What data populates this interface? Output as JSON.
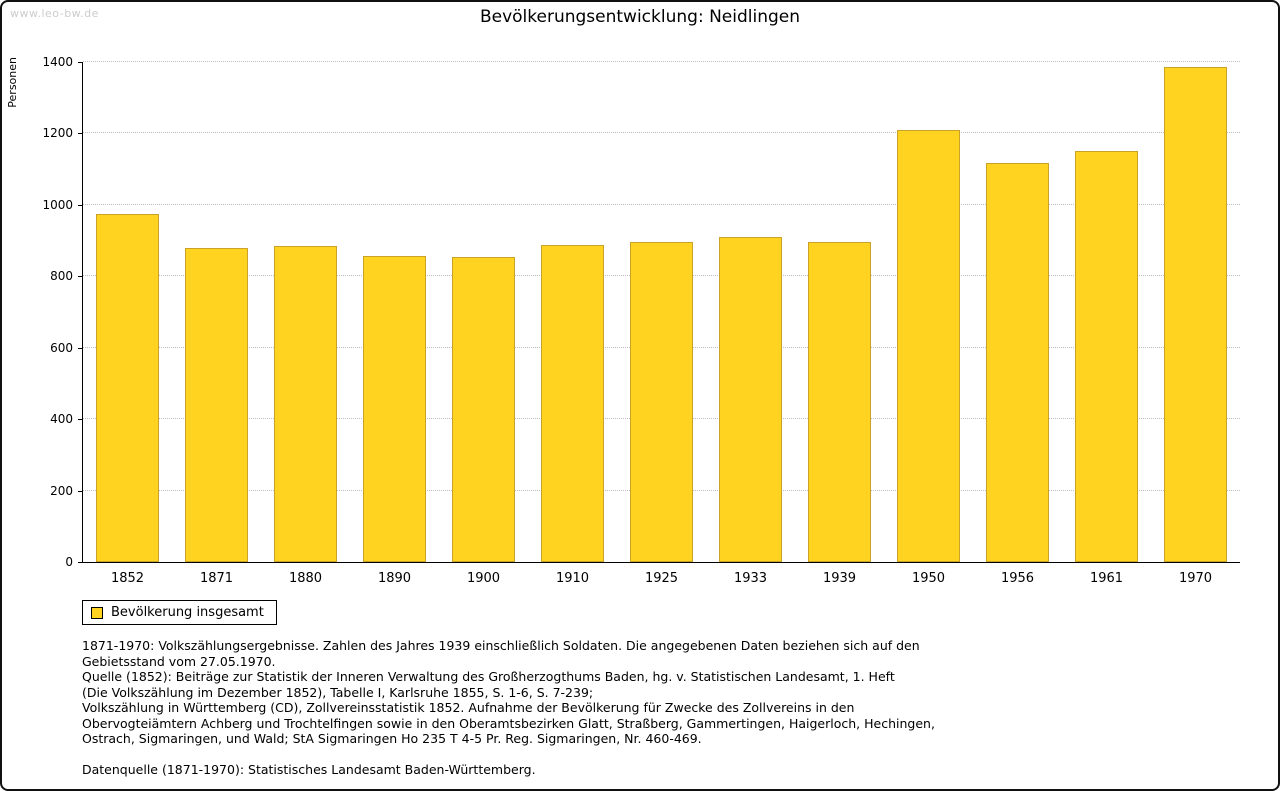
{
  "page": {
    "watermark": "www.leo-bw.de",
    "title": "Bevölkerungsentwicklung: Neidlingen"
  },
  "chart_data": {
    "type": "bar",
    "title": "Bevölkerungsentwicklung: Neidlingen",
    "xlabel": "",
    "ylabel": "Personen",
    "categories": [
      "1852",
      "1871",
      "1880",
      "1890",
      "1900",
      "1910",
      "1925",
      "1933",
      "1939",
      "1950",
      "1956",
      "1961",
      "1970"
    ],
    "series": [
      {
        "name": "Bevölkerung insgesamt",
        "values": [
          974,
          880,
          884,
          858,
          854,
          887,
          897,
          911,
          895,
          1211,
          1117,
          1152,
          1387
        ]
      }
    ],
    "ylim": [
      0,
      1400
    ],
    "yticks": [
      0,
      200,
      400,
      600,
      800,
      1000,
      1200,
      1400
    ],
    "grid": "horizontal-dotted",
    "legend_position": "bottom-left",
    "bar_color": "#FFD320",
    "bar_border_color": "#C9A227"
  },
  "legend": {
    "label": "Bevölkerung insgesamt",
    "swatch_color": "#FFD320",
    "swatch_border_color": "#000000"
  },
  "footnotes": {
    "lines": [
      "1871-1970: Volkszählungsergebnisse. Zahlen des Jahres 1939 einschließlich Soldaten. Die angegebenen Daten beziehen sich auf den",
      "Gebietsstand vom 27.05.1970.",
      "Quelle (1852): Beiträge zur Statistik der Inneren Verwaltung des Großherzogthums Baden, hg. v. Statistischen Landesamt, 1. Heft",
      "(Die Volkszählung im Dezember 1852), Tabelle I, Karlsruhe 1855, S. 1-6, S. 7-239;",
      "Volkszählung in Württemberg (CD), Zollvereinsstatistik 1852. Aufnahme der Bevölkerung für Zwecke des Zollvereins in den",
      "Obervogteiämtern Achberg und Trochtelfingen sowie in den Oberamtsbezirken Glatt, Straßberg, Gammertingen, Haigerloch, Hechingen,",
      "Ostrach, Sigmaringen, und Wald; StA Sigmaringen Ho 235 T 4-5 Pr. Reg. Sigmaringen, Nr. 460-469.",
      "",
      "Datenquelle (1871-1970): Statistisches Landesamt Baden-Württemberg."
    ]
  }
}
